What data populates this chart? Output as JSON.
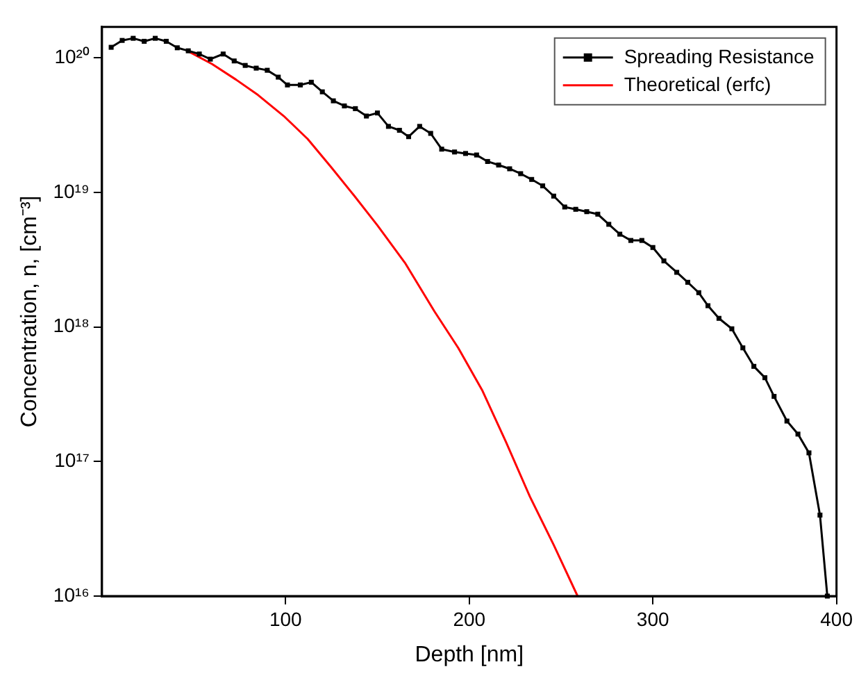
{
  "chart_data": {
    "type": "line",
    "xlabel": "Depth [nm]",
    "ylabel": "Concentration, n, [cm⁻³]",
    "log": "y",
    "xlim": [
      0,
      400
    ],
    "xticks": [
      100,
      200,
      300,
      400
    ],
    "ylim": [
      1e+16,
      1.7e+20
    ],
    "yticks": [
      {
        "value": 1e+16,
        "label": "10¹⁶"
      },
      {
        "value": 1e+17,
        "label": "10¹⁷"
      },
      {
        "value": 1e+18,
        "label": "10¹⁸"
      },
      {
        "value": 1e+19,
        "label": "10¹⁹"
      },
      {
        "value": 1e+20,
        "label": "10²⁰"
      }
    ],
    "grid": false,
    "legend": "top right",
    "series": [
      {
        "name": "Spreading Resistance",
        "color": "#000000",
        "marker": "square",
        "x": [
          5,
          11,
          17,
          23,
          29,
          35,
          41,
          47,
          53,
          59,
          66,
          72,
          78,
          84,
          90,
          96,
          101,
          108,
          114,
          120,
          126,
          132,
          138,
          144,
          150,
          156,
          162,
          167,
          173,
          179,
          185,
          192,
          198,
          204,
          210,
          216,
          222,
          228,
          234,
          240,
          246,
          252,
          258,
          264,
          270,
          276,
          282,
          288,
          294,
          300,
          306,
          313,
          319,
          325,
          330,
          336,
          343,
          349,
          355,
          361,
          366,
          373,
          379,
          385,
          391,
          395
        ],
        "values": [
          1.2e+20,
          1.35e+20,
          1.4e+20,
          1.33e+20,
          1.4e+20,
          1.33e+20,
          1.19e+20,
          1.13e+20,
          1.07e+20,
          9.8e+19,
          1.07e+20,
          9.5e+19,
          8.8e+19,
          8.4e+19,
          8.1e+19,
          7.2e+19,
          6.3e+19,
          6.3e+19,
          6.6e+19,
          5.6e+19,
          4.8e+19,
          4.4e+19,
          4.2e+19,
          3.7e+19,
          3.9e+19,
          3.1e+19,
          2.9e+19,
          2.6e+19,
          3.1e+19,
          2.75e+19,
          2.1e+19,
          2e+19,
          1.95e+19,
          1.9e+19,
          1.7e+19,
          1.6e+19,
          1.5e+19,
          1.38e+19,
          1.25e+19,
          1.12e+19,
          9.4e+18,
          7.8e+18,
          7.5e+18,
          7.2e+18,
          6.9e+18,
          5.8e+18,
          4.9e+18,
          4.4e+18,
          4.4e+18,
          3.9e+18,
          3.1e+18,
          2.55e+18,
          2.15e+18,
          1.8e+18,
          1.44e+18,
          1.16e+18,
          9.7e+17,
          7e+17,
          5.1e+17,
          4.2e+17,
          3.05e+17,
          2e+17,
          1.6e+17,
          1.16e+17,
          4e+16,
          1e+16
        ]
      },
      {
        "name": "Theoretical (erfc)",
        "color": "#ff0000",
        "marker": "none",
        "x": [
          47,
          60,
          73,
          85,
          99,
          112,
          125,
          137,
          150,
          165,
          181,
          194,
          207,
          220,
          233,
          246,
          259
        ],
        "values": [
          1.12e+20,
          9e+19,
          6.9e+19,
          5.3e+19,
          3.7e+19,
          2.5e+19,
          1.53e+19,
          9.6e+18,
          5.7e+18,
          3e+18,
          1.31e+18,
          7e+17,
          3.4e+17,
          1.4e+17,
          5.5e+16,
          2.4e+16,
          1e+16
        ]
      }
    ]
  }
}
